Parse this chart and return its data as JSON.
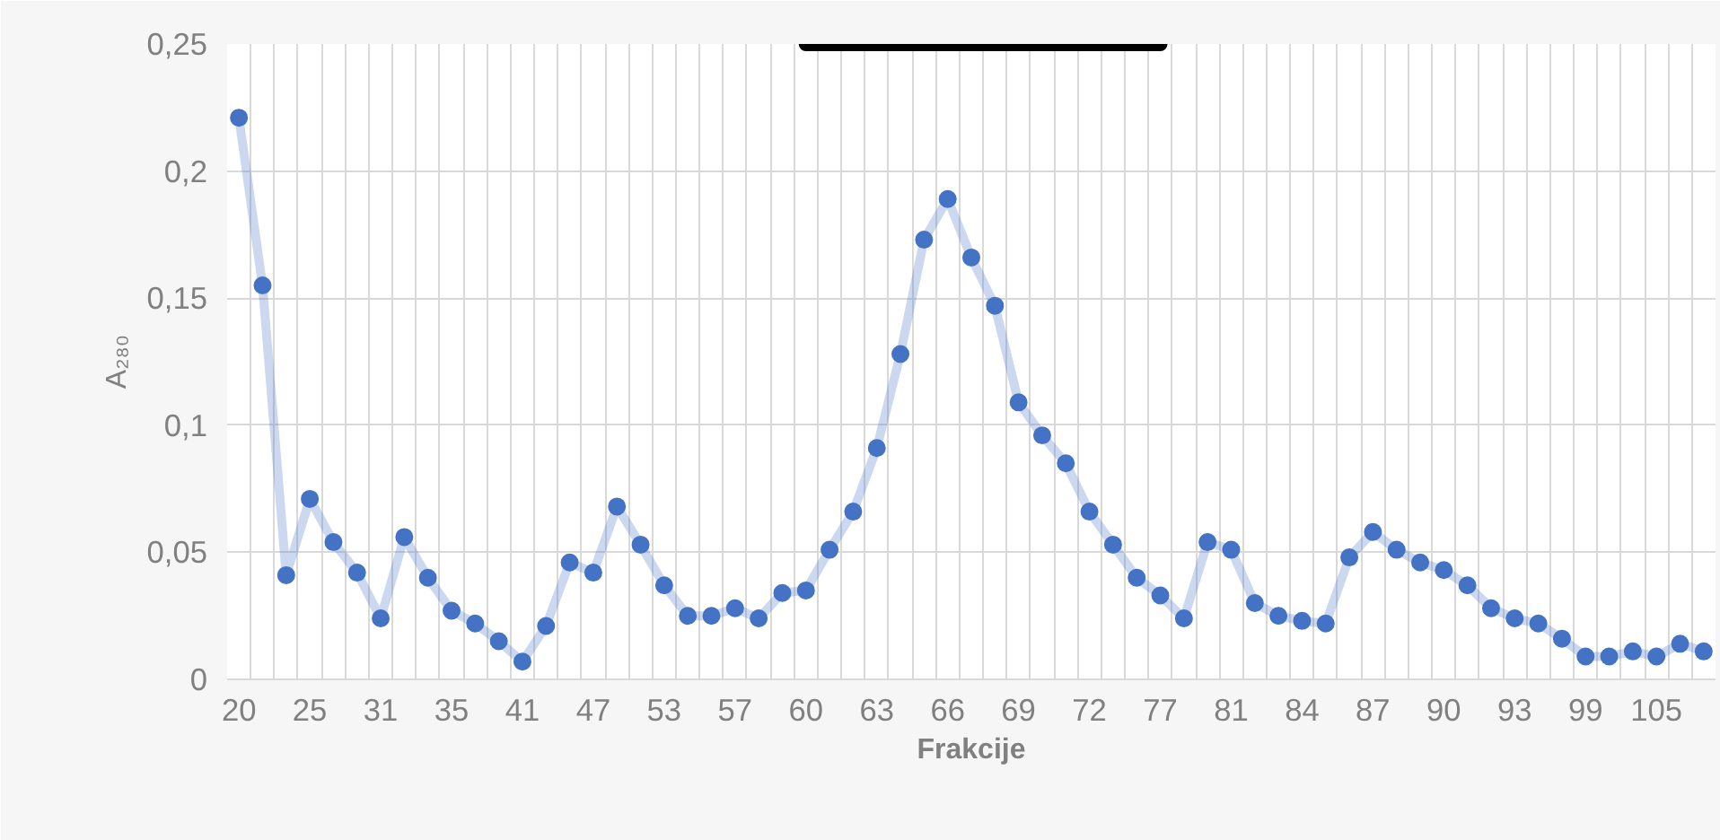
{
  "chart_data": {
    "type": "line",
    "xlabel": "Frakcije",
    "ylabel": "A₂₈₀",
    "categories": [
      "20",
      null,
      null,
      "25",
      null,
      null,
      "31",
      null,
      null,
      "35",
      null,
      null,
      "41",
      null,
      null,
      "47",
      null,
      null,
      "53",
      null,
      null,
      "57",
      null,
      null,
      "60",
      null,
      null,
      "63",
      null,
      null,
      "66",
      null,
      null,
      "69",
      null,
      null,
      "72",
      null,
      null,
      "77",
      null,
      null,
      "81",
      null,
      null,
      "84",
      null,
      null,
      "87",
      null,
      null,
      "90",
      null,
      null,
      "93",
      null,
      null,
      "99",
      null,
      null,
      "105",
      null,
      null
    ],
    "series": [
      {
        "color": "#4472c4",
        "values": [
          0.221,
          0.155,
          0.041,
          0.071,
          0.054,
          0.042,
          0.024,
          0.056,
          0.04,
          0.027,
          0.022,
          0.015,
          0.007,
          0.021,
          0.046,
          0.042,
          0.068,
          0.053,
          0.037,
          0.025,
          0.025,
          0.028,
          0.024,
          0.034,
          0.035,
          0.051,
          0.066,
          0.091,
          0.128,
          0.173,
          0.189,
          0.166,
          0.147,
          0.109,
          0.096,
          0.085,
          0.066,
          0.053,
          0.04,
          0.033,
          0.024,
          0.054,
          0.051,
          0.03,
          0.025,
          0.023,
          0.022,
          0.048,
          0.058,
          0.051,
          0.046,
          0.043,
          0.037,
          0.028,
          0.024,
          0.022,
          0.016,
          0.009,
          0.009,
          0.011,
          0.009,
          0.014,
          0.011
        ]
      },
      {
        "type": "line",
        "x": [
          "60",
          "77"
        ],
        "values": [
          0.25,
          0.25
        ],
        "color": "#000000",
        "marker": "none"
      }
    ],
    "ylim": [
      0,
      0.25
    ],
    "yticks": [
      0,
      {
        "value": 0.05,
        "label": "0,05"
      },
      {
        "value": 0.1,
        "label": "0,1"
      },
      {
        "value": 0.15,
        "label": "0,15"
      },
      {
        "value": 0.2,
        "label": "0,2"
      },
      {
        "value": 0.25,
        "label": "0,25"
      }
    ],
    "grid": true,
    "marker": "circle",
    "line_style": "solid"
  }
}
